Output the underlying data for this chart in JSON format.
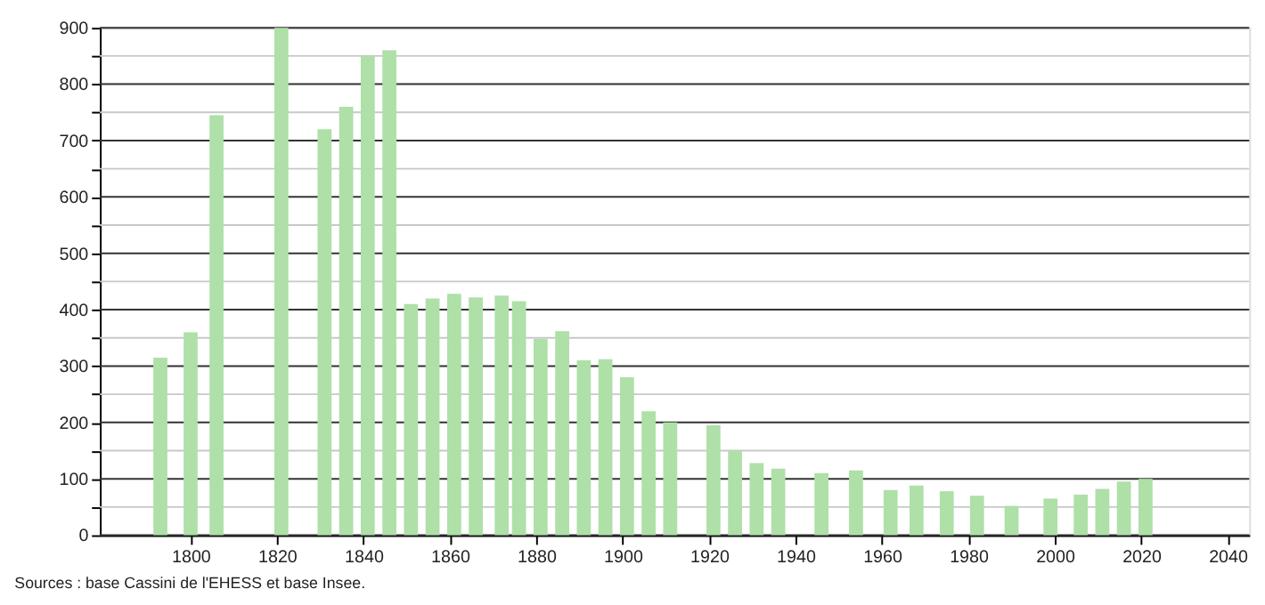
{
  "chart_data": {
    "type": "bar",
    "x": [
      1793,
      1800,
      1806,
      1821,
      1831,
      1836,
      1841,
      1846,
      1851,
      1856,
      1861,
      1866,
      1872,
      1876,
      1881,
      1886,
      1891,
      1896,
      1901,
      1906,
      1911,
      1921,
      1926,
      1931,
      1936,
      1946,
      1954,
      1962,
      1968,
      1975,
      1982,
      1990,
      1999,
      2006,
      2011,
      2016,
      2021
    ],
    "values": [
      315,
      360,
      745,
      900,
      720,
      760,
      850,
      860,
      410,
      420,
      428,
      422,
      425,
      415,
      348,
      362,
      310,
      312,
      280,
      220,
      200,
      195,
      150,
      128,
      118,
      110,
      115,
      80,
      88,
      78,
      70,
      52,
      65,
      72,
      82,
      95,
      100
    ],
    "color": "#aee0a8",
    "xlim": [
      1779,
      2045
    ],
    "xticks": [
      1800,
      1820,
      1840,
      1860,
      1880,
      1900,
      1920,
      1940,
      1960,
      1980,
      2000,
      2020,
      2040
    ],
    "ylim": [
      0,
      900
    ],
    "yticks": [
      0,
      {
        "value": 50,
        "label": null
      },
      100,
      {
        "value": 150,
        "label": null
      },
      200,
      {
        "value": 250,
        "label": null
      },
      300,
      {
        "value": 350,
        "label": null
      },
      400,
      {
        "value": 450,
        "label": null
      },
      500,
      {
        "value": 550,
        "label": null
      },
      600,
      {
        "value": 650,
        "label": null
      },
      700,
      {
        "value": 750,
        "label": null
      },
      800,
      {
        "value": 850,
        "label": null
      },
      900
    ],
    "grid": "y",
    "annotations": [
      "Sources : base Cassini de l'EHESS et base Insee."
    ]
  }
}
